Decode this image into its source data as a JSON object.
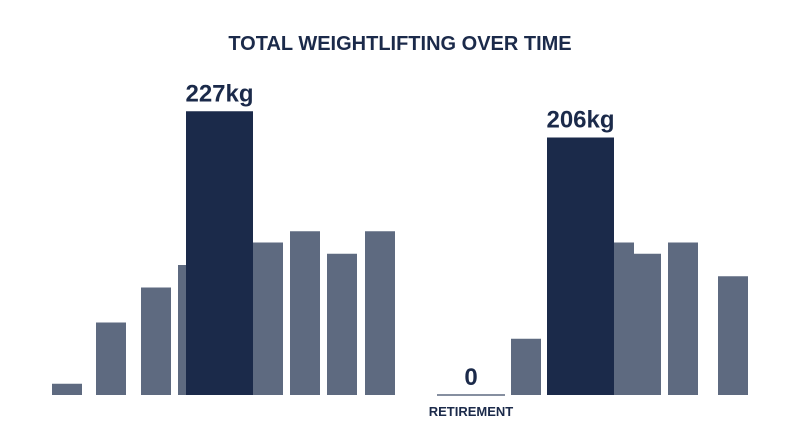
{
  "chart_data": {
    "type": "bar",
    "title": "TOTAL WEIGHTLIFTING OVER TIME",
    "categories": [
      null,
      null,
      null,
      null,
      null,
      null,
      null,
      null,
      null,
      "RETIREMENT",
      null,
      null,
      null,
      null,
      null,
      null
    ],
    "values": [
      9,
      58,
      86,
      104,
      227,
      122,
      131,
      113,
      131,
      0,
      45,
      206,
      122,
      113,
      122,
      95
    ],
    "value_labels": [
      null,
      null,
      null,
      null,
      "227kg",
      null,
      null,
      null,
      null,
      "0",
      null,
      "206kg",
      null,
      null,
      null,
      null
    ],
    "colors": [
      "#5e6a80",
      "#5e6a80",
      "#5e6a80",
      "#5e6a80",
      "#1b2a4a",
      "#5e6a80",
      "#5e6a80",
      "#5e6a80",
      "#5e6a80",
      "#5e6a80",
      "#5e6a80",
      "#1b2a4a",
      "#5e6a80",
      "#5e6a80",
      "#5e6a80",
      "#5e6a80"
    ],
    "ylim": [
      0,
      240
    ]
  }
}
